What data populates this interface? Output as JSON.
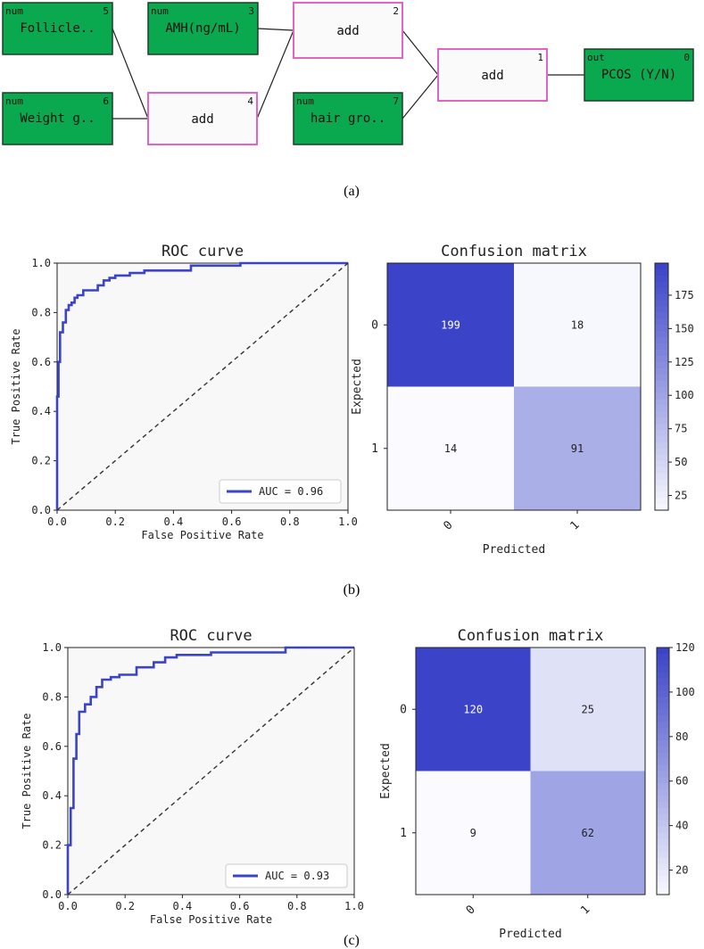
{
  "captions": {
    "a": "(a)",
    "b": "(b)",
    "c": "(c)"
  },
  "colors": {
    "node_green": "#0aa84f",
    "node_border_dark": "#1d3d26",
    "add_border": "#e463c4",
    "add_fill": "#fafafa",
    "roc_line": "#3b44c8",
    "diag_line": "#333333",
    "plot_bg": "#f8f8f8",
    "cm_high": "#3b44c8",
    "cm_low": "#fbfbff"
  },
  "diagram": {
    "nodes": [
      {
        "id": "n5",
        "kind": "num",
        "index": "5",
        "label": "Follicle.."
      },
      {
        "id": "n3",
        "kind": "num",
        "index": "3",
        "label": "AMH(ng/mL)"
      },
      {
        "id": "n2",
        "kind": "",
        "index": "2",
        "label": "add"
      },
      {
        "id": "n1",
        "kind": "",
        "index": "1",
        "label": "add"
      },
      {
        "id": "n0",
        "kind": "out",
        "index": "0",
        "label": "PCOS (Y/N)"
      },
      {
        "id": "n6",
        "kind": "num",
        "index": "6",
        "label": "Weight g.."
      },
      {
        "id": "n4",
        "kind": "",
        "index": "4",
        "label": "add"
      },
      {
        "id": "n7",
        "kind": "num",
        "index": "7",
        "label": "hair gro.."
      }
    ],
    "edges": [
      [
        "n5",
        "n4"
      ],
      [
        "n6",
        "n4"
      ],
      [
        "n3",
        "n2"
      ],
      [
        "n4",
        "n2"
      ],
      [
        "n2",
        "n1"
      ],
      [
        "n7",
        "n1"
      ],
      [
        "n1",
        "n0"
      ]
    ]
  },
  "chart_data": [
    {
      "type": "line",
      "panel": "b",
      "title": "ROC curve",
      "xlabel": "False Positive Rate",
      "ylabel": "True Positive Rate",
      "xlim": [
        0,
        1
      ],
      "ylim": [
        0,
        1
      ],
      "xticks": [
        "0.0",
        "0.2",
        "0.4",
        "0.6",
        "0.8",
        "1.0"
      ],
      "yticks": [
        "0.0",
        "0.2",
        "0.4",
        "0.6",
        "0.8",
        "1.0"
      ],
      "legend": "AUC = 0.96",
      "legend_position": "lower-right",
      "series": [
        {
          "name": "AUC = 0.96",
          "x": [
            0,
            0,
            0.005,
            0.005,
            0.01,
            0.01,
            0.02,
            0.02,
            0.03,
            0.03,
            0.04,
            0.04,
            0.05,
            0.05,
            0.06,
            0.06,
            0.07,
            0.07,
            0.09,
            0.09,
            0.14,
            0.14,
            0.16,
            0.16,
            0.18,
            0.18,
            0.2,
            0.2,
            0.25,
            0.25,
            0.3,
            0.3,
            0.46,
            0.46,
            0.63,
            0.63,
            1.0
          ],
          "y": [
            0,
            0.46,
            0.46,
            0.6,
            0.6,
            0.72,
            0.72,
            0.76,
            0.76,
            0.81,
            0.81,
            0.83,
            0.83,
            0.84,
            0.84,
            0.86,
            0.86,
            0.87,
            0.87,
            0.89,
            0.89,
            0.91,
            0.91,
            0.93,
            0.93,
            0.94,
            0.94,
            0.95,
            0.95,
            0.96,
            0.96,
            0.97,
            0.97,
            0.99,
            0.99,
            1.0,
            1.0
          ]
        },
        {
          "name": "chance",
          "x": [
            0,
            1
          ],
          "y": [
            0,
            1
          ],
          "style": "dashed"
        }
      ]
    },
    {
      "type": "heatmap",
      "panel": "b",
      "title": "Confusion matrix",
      "xlabel": "Predicted",
      "ylabel": "Expected",
      "x_categories": [
        "0",
        "1"
      ],
      "y_categories": [
        "0",
        "1"
      ],
      "values": [
        [
          199,
          18
        ],
        [
          14,
          91
        ]
      ],
      "colorbar_range": [
        14,
        199
      ],
      "colorbar_ticks": [
        25,
        50,
        75,
        100,
        125,
        150,
        175
      ]
    },
    {
      "type": "line",
      "panel": "c",
      "title": "ROC curve",
      "xlabel": "False Positive Rate",
      "ylabel": "True Positive Rate",
      "xlim": [
        0,
        1
      ],
      "ylim": [
        0,
        1
      ],
      "xticks": [
        "0.0",
        "0.2",
        "0.4",
        "0.6",
        "0.8",
        "1.0"
      ],
      "yticks": [
        "0.0",
        "0.2",
        "0.4",
        "0.6",
        "0.8",
        "1.0"
      ],
      "legend": "AUC = 0.93",
      "legend_position": "lower-right",
      "series": [
        {
          "name": "AUC = 0.93",
          "x": [
            0,
            0,
            0.01,
            0.01,
            0.02,
            0.02,
            0.03,
            0.03,
            0.04,
            0.04,
            0.06,
            0.06,
            0.08,
            0.08,
            0.1,
            0.1,
            0.12,
            0.12,
            0.15,
            0.15,
            0.18,
            0.18,
            0.24,
            0.24,
            0.3,
            0.3,
            0.34,
            0.34,
            0.38,
            0.38,
            0.5,
            0.5,
            0.76,
            0.76,
            1.0
          ],
          "y": [
            0,
            0.2,
            0.2,
            0.35,
            0.35,
            0.55,
            0.55,
            0.65,
            0.65,
            0.74,
            0.74,
            0.77,
            0.77,
            0.8,
            0.8,
            0.84,
            0.84,
            0.87,
            0.87,
            0.88,
            0.88,
            0.89,
            0.89,
            0.92,
            0.92,
            0.94,
            0.94,
            0.96,
            0.96,
            0.97,
            0.97,
            0.98,
            0.98,
            1.0,
            1.0
          ]
        },
        {
          "name": "chance",
          "x": [
            0,
            1
          ],
          "y": [
            0,
            1
          ],
          "style": "dashed"
        }
      ]
    },
    {
      "type": "heatmap",
      "panel": "c",
      "title": "Confusion matrix",
      "xlabel": "Predicted",
      "ylabel": "Expected",
      "x_categories": [
        "0",
        "1"
      ],
      "y_categories": [
        "0",
        "1"
      ],
      "values": [
        [
          120,
          25
        ],
        [
          9,
          62
        ]
      ],
      "colorbar_range": [
        9,
        120
      ],
      "colorbar_ticks": [
        20,
        40,
        60,
        80,
        100,
        120
      ]
    }
  ]
}
